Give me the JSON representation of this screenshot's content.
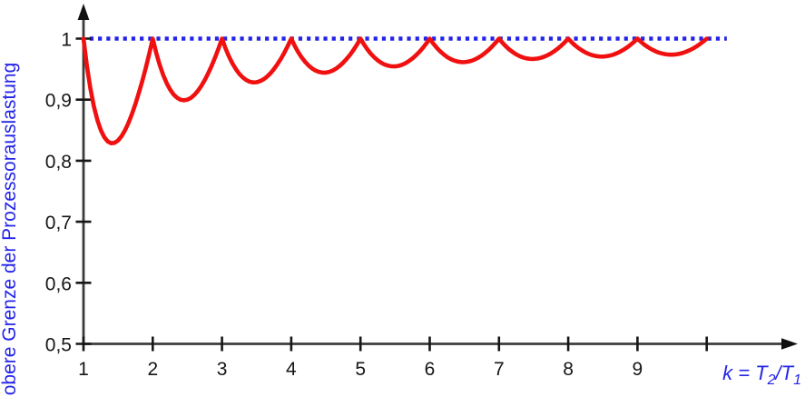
{
  "colors": {
    "curve_red": "#f01010",
    "reference_blue": "#2424e8",
    "axis_gray": "#3c3c3c",
    "tick_black": "#161616",
    "background": "#ffffff"
  },
  "chart_data": {
    "type": "line",
    "title": "",
    "xlabel": "k = T2/T1",
    "xlabel_parts": [
      {
        "t": "k = T",
        "sub": false
      },
      {
        "t": "2",
        "sub": true
      },
      {
        "t": "/T",
        "sub": false
      },
      {
        "t": "1",
        "sub": true
      }
    ],
    "ylabel": "obere Grenze der Prozessorauslastung",
    "xlim": [
      1,
      10.35
    ],
    "ylim": [
      0.5,
      1.06
    ],
    "grid": false,
    "legend": "none",
    "x_ticks": [
      {
        "v": 1,
        "label": "1"
      },
      {
        "v": 2,
        "label": "2"
      },
      {
        "v": 3,
        "label": "3"
      },
      {
        "v": 4,
        "label": "4"
      },
      {
        "v": 5,
        "label": "5"
      },
      {
        "v": 6,
        "label": "6"
      },
      {
        "v": 7,
        "label": "7"
      },
      {
        "v": 8,
        "label": "8"
      },
      {
        "v": 9,
        "label": "9"
      },
      {
        "v": 10,
        "label": ""
      }
    ],
    "y_ticks": [
      {
        "v": 0.5,
        "label": "0,5"
      },
      {
        "v": 0.6,
        "label": "0,6"
      },
      {
        "v": 0.7,
        "label": "0,7"
      },
      {
        "v": 0.8,
        "label": "0,8"
      },
      {
        "v": 0.9,
        "label": "0,9"
      },
      {
        "v": 1.0,
        "label": "1"
      }
    ],
    "reference_line": {
      "y": 1.0,
      "style": "dotted",
      "x_start": 1.09,
      "x_end": 10.29
    },
    "cusps_at_integer_k": [
      1,
      2,
      3,
      4,
      5,
      6,
      7,
      8,
      9,
      10
    ],
    "cusp_value": 1.0,
    "local_minima": [
      [
        1.41,
        0.828
      ],
      [
        2.45,
        0.899
      ],
      [
        3.46,
        0.928
      ],
      [
        4.47,
        0.944
      ],
      [
        5.48,
        0.954
      ],
      [
        6.48,
        0.961
      ],
      [
        7.48,
        0.967
      ],
      [
        8.49,
        0.971
      ],
      [
        9.49,
        0.974
      ]
    ],
    "series": [
      {
        "name": "obere Grenze der Prozessorauslastung",
        "color": "#f01010",
        "points": [
          [
            1,
            1
          ],
          [
            1.05,
            0.9548
          ],
          [
            1.1,
            0.9182
          ],
          [
            1.15,
            0.8891
          ],
          [
            1.2,
            0.8667
          ],
          [
            1.25,
            0.85
          ],
          [
            1.3,
            0.8385
          ],
          [
            1.35,
            0.8315
          ],
          [
            1.4,
            0.8286
          ],
          [
            1.45,
            0.8293
          ],
          [
            1.5,
            0.8333
          ],
          [
            1.55,
            0.8403
          ],
          [
            1.6,
            0.85
          ],
          [
            1.65,
            0.8621
          ],
          [
            1.7,
            0.8765
          ],
          [
            1.75,
            0.8929
          ],
          [
            1.8,
            0.9111
          ],
          [
            1.85,
            0.9311
          ],
          [
            1.9,
            0.9526
          ],
          [
            1.95,
            0.9756
          ],
          [
            2,
            1
          ],
          [
            2.05,
            0.9768
          ],
          [
            2.1,
            0.9571
          ],
          [
            2.15,
            0.9407
          ],
          [
            2.2,
            0.9273
          ],
          [
            2.25,
            0.9167
          ],
          [
            2.3,
            0.9087
          ],
          [
            2.35,
            0.9032
          ],
          [
            2.4,
            0.9
          ],
          [
            2.45,
            0.899
          ],
          [
            2.5,
            0.9
          ],
          [
            2.55,
            0.9029
          ],
          [
            2.6,
            0.9077
          ],
          [
            2.65,
            0.9142
          ],
          [
            2.7,
            0.9222
          ],
          [
            2.75,
            0.9318
          ],
          [
            2.8,
            0.9429
          ],
          [
            2.85,
            0.9553
          ],
          [
            2.9,
            0.969
          ],
          [
            2.95,
            0.9839
          ],
          [
            3,
            1
          ],
          [
            3.05,
            0.9844
          ],
          [
            3.1,
            0.971
          ],
          [
            3.15,
            0.9595
          ],
          [
            3.2,
            0.95
          ],
          [
            3.25,
            0.9423
          ],
          [
            3.3,
            0.9364
          ],
          [
            3.35,
            0.9321
          ],
          [
            3.4,
            0.9294
          ],
          [
            3.45,
            0.9283
          ],
          [
            3.5,
            0.9286
          ],
          [
            3.55,
            0.9303
          ],
          [
            3.6,
            0.9333
          ],
          [
            3.65,
            0.9377
          ],
          [
            3.7,
            0.9432
          ],
          [
            3.75,
            0.95
          ],
          [
            3.8,
            0.9579
          ],
          [
            3.85,
            0.9669
          ],
          [
            3.9,
            0.9769
          ],
          [
            3.95,
            0.988
          ],
          [
            4,
            1
          ],
          [
            4.05,
            0.9883
          ],
          [
            4.1,
            0.978
          ],
          [
            4.15,
            0.9693
          ],
          [
            4.2,
            0.9619
          ],
          [
            4.25,
            0.9559
          ],
          [
            4.3,
            0.9512
          ],
          [
            4.35,
            0.9477
          ],
          [
            4.4,
            0.9455
          ],
          [
            4.45,
            0.9444
          ],
          [
            4.5,
            0.9444
          ],
          [
            4.55,
            0.9456
          ],
          [
            4.6,
            0.9478
          ],
          [
            4.65,
            0.9511
          ],
          [
            4.7,
            0.9553
          ],
          [
            4.75,
            0.9605
          ],
          [
            4.8,
            0.9667
          ],
          [
            4.85,
            0.9737
          ],
          [
            4.9,
            0.9816
          ],
          [
            4.95,
            0.9904
          ],
          [
            5,
            1
          ],
          [
            5.05,
            0.9906
          ],
          [
            5.1,
            0.9824
          ],
          [
            5.15,
            0.9752
          ],
          [
            5.2,
            0.9692
          ],
          [
            5.25,
            0.9643
          ],
          [
            5.3,
            0.9604
          ],
          [
            5.35,
            0.9575
          ],
          [
            5.4,
            0.9556
          ],
          [
            5.45,
            0.9546
          ],
          [
            5.5,
            0.9545
          ],
          [
            5.55,
            0.9554
          ],
          [
            5.6,
            0.9571
          ],
          [
            5.65,
            0.9597
          ],
          [
            5.7,
            0.9632
          ],
          [
            5.75,
            0.9674
          ],
          [
            5.8,
            0.9724
          ],
          [
            5.85,
            0.9782
          ],
          [
            5.9,
            0.9847
          ],
          [
            5.95,
            0.992
          ],
          [
            6,
            1
          ],
          [
            6.05,
            0.9921
          ],
          [
            6.1,
            0.9852
          ],
          [
            6.15,
            0.9793
          ],
          [
            6.2,
            0.9742
          ],
          [
            6.25,
            0.97
          ],
          [
            6.3,
            0.9667
          ],
          [
            6.35,
            0.9642
          ],
          [
            6.4,
            0.9625
          ],
          [
            6.45,
            0.9616
          ],
          [
            6.5,
            0.9615
          ],
          [
            6.55,
            0.9622
          ],
          [
            6.6,
            0.9636
          ],
          [
            6.65,
            0.9658
          ],
          [
            6.7,
            0.9687
          ],
          [
            6.75,
            0.9722
          ],
          [
            6.8,
            0.9765
          ],
          [
            6.85,
            0.9814
          ],
          [
            6.9,
            0.987
          ],
          [
            6.95,
            0.9932
          ],
          [
            7,
            1
          ],
          [
            7.05,
            0.9933
          ],
          [
            7.1,
            0.9873
          ],
          [
            7.15,
            0.9822
          ],
          [
            7.2,
            0.9778
          ],
          [
            7.25,
            0.9741
          ],
          [
            7.3,
            0.9712
          ],
          [
            7.35,
            0.969
          ],
          [
            7.4,
            0.9676
          ],
          [
            7.45,
            0.9668
          ],
          [
            7.5,
            0.9667
          ],
          [
            7.55,
            0.9672
          ],
          [
            7.6,
            0.9684
          ],
          [
            7.65,
            0.9703
          ],
          [
            7.7,
            0.9727
          ],
          [
            7.75,
            0.9758
          ],
          [
            7.8,
            0.9795
          ],
          [
            7.85,
            0.9838
          ],
          [
            7.9,
            0.9886
          ],
          [
            7.95,
            0.994
          ],
          [
            8,
            1
          ],
          [
            8.05,
            0.9941
          ],
          [
            8.1,
            0.9889
          ],
          [
            8.15,
            0.9844
          ],
          [
            8.2,
            0.9805
          ],
          [
            8.25,
            0.9773
          ],
          [
            8.3,
            0.9747
          ],
          [
            8.35,
            0.9728
          ],
          [
            8.4,
            0.9714
          ],
          [
            8.45,
            0.9707
          ],
          [
            8.5,
            0.9706
          ],
          [
            8.55,
            0.9711
          ],
          [
            8.6,
            0.9721
          ],
          [
            8.65,
            0.9737
          ],
          [
            8.7,
            0.9759
          ],
          [
            8.75,
            0.9786
          ],
          [
            8.8,
            0.9818
          ],
          [
            8.85,
            0.9856
          ],
          [
            8.9,
            0.9899
          ],
          [
            8.95,
            0.9947
          ],
          [
            9,
            1
          ],
          [
            9.05,
            0.9948
          ],
          [
            9.1,
            0.9901
          ],
          [
            9.15,
            0.9861
          ],
          [
            9.2,
            0.9826
          ],
          [
            9.25,
            0.9797
          ],
          [
            9.3,
            0.9774
          ],
          [
            9.35,
            0.9757
          ],
          [
            9.4,
            0.9745
          ],
          [
            9.45,
            0.9738
          ],
          [
            9.5,
            0.9737
          ],
          [
            9.55,
            0.9741
          ],
          [
            9.6,
            0.975
          ],
          [
            9.65,
            0.9764
          ],
          [
            9.7,
            0.9784
          ],
          [
            9.75,
            0.9808
          ],
          [
            9.8,
            0.9837
          ],
          [
            9.85,
            0.9871
          ],
          [
            9.9,
            0.9909
          ],
          [
            9.95,
            0.9952
          ],
          [
            10,
            1
          ]
        ]
      }
    ]
  }
}
